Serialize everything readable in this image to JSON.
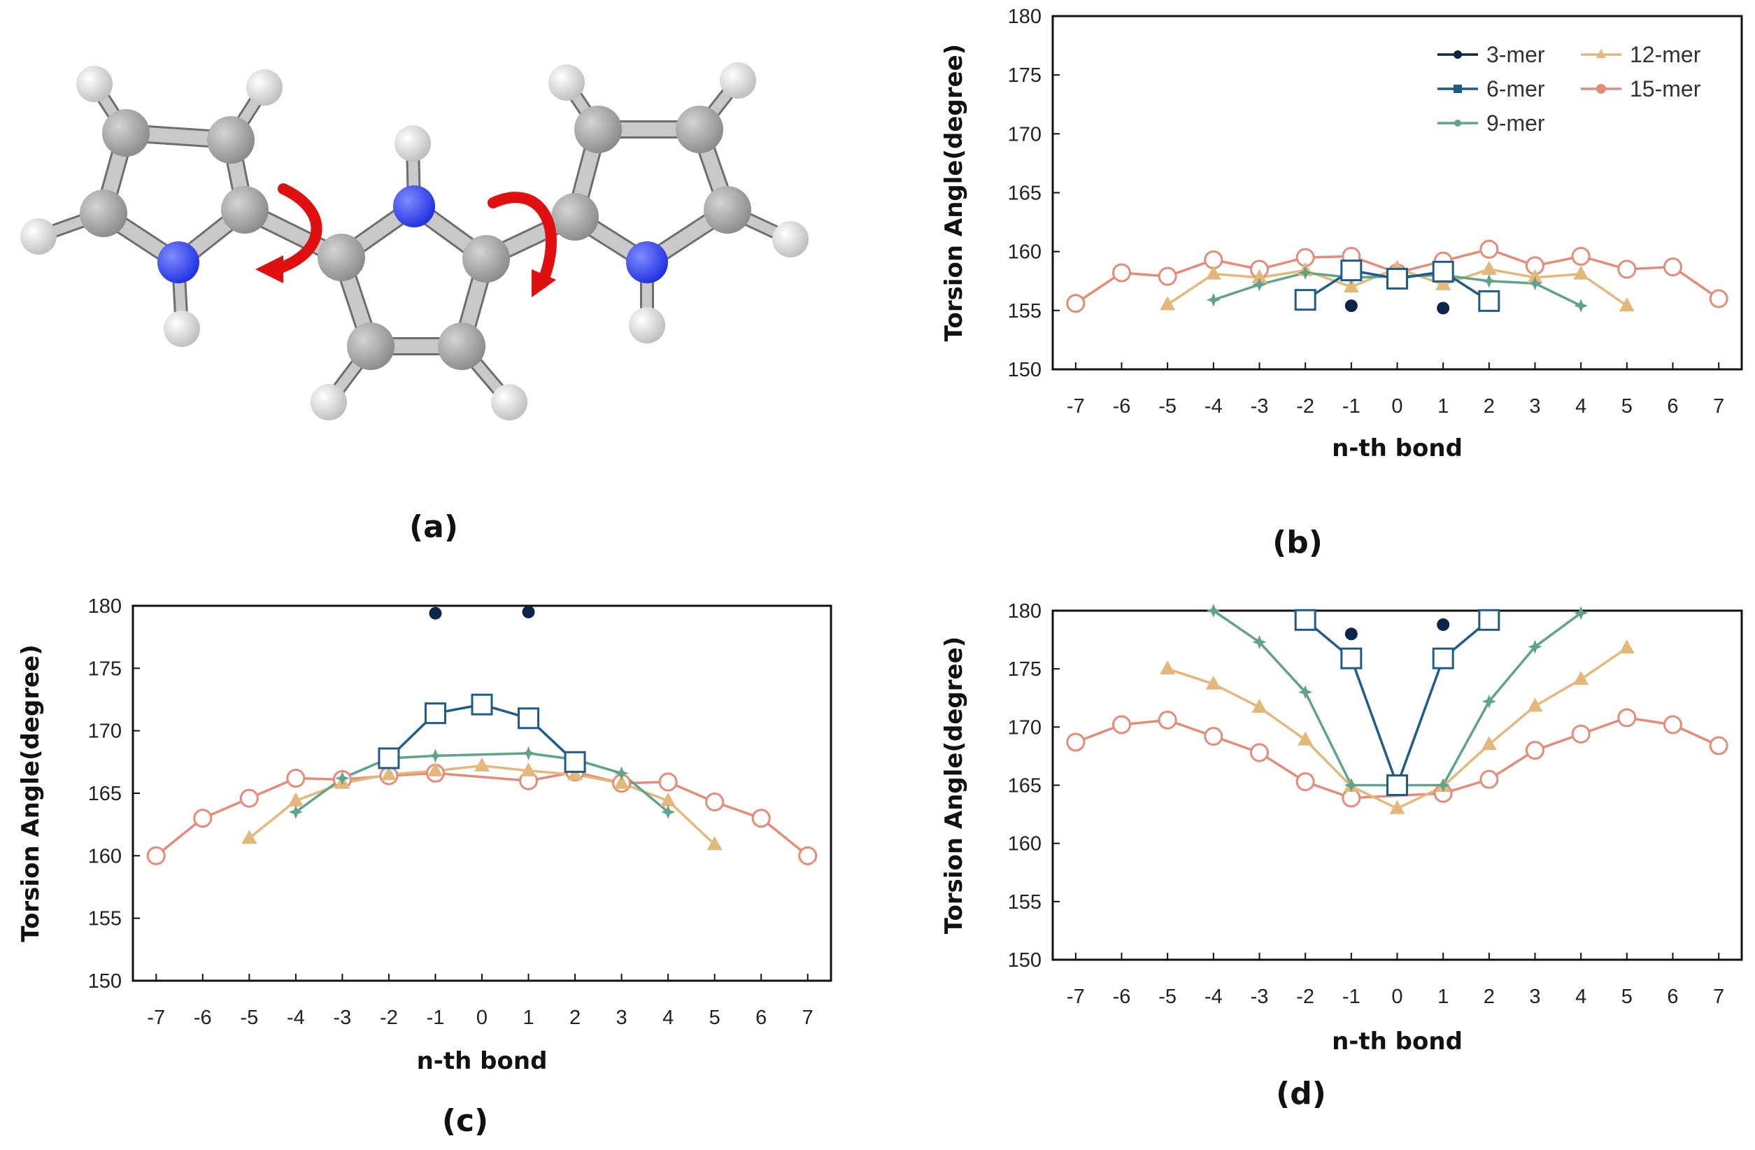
{
  "panels": {
    "a": "(a)",
    "b": "(b)",
    "c": "(c)",
    "d": "(d)"
  },
  "colors": {
    "3-mer": "#0b2447",
    "6-mer": "#1f5b87",
    "9-mer": "#5fa38a",
    "12-mer": "#e3b87a",
    "15-mer": "#e58b77",
    "carbon": "#8a8a8a",
    "nitrogen": "#1f2fe0",
    "hydrogen": "#eeeeee",
    "arrow": "#e01010"
  },
  "molecule": {
    "type": "terpyrrole ball-and-stick",
    "icon": "molecule-diagram"
  },
  "chart_data": [
    {
      "id": "b",
      "type": "line",
      "xlabel": "n-th bond",
      "ylabel": "Torsion Angle(degree)",
      "xticks": [
        -7,
        -6,
        -5,
        -4,
        -3,
        -2,
        -1,
        0,
        1,
        2,
        3,
        4,
        5,
        6,
        7
      ],
      "yticks": [
        150,
        155,
        160,
        165,
        170,
        175,
        180
      ],
      "ylim": [
        150,
        180
      ],
      "xlim": [
        -7.5,
        7.5
      ],
      "legend": {
        "placement": "top-right",
        "entries": [
          "3-mer",
          "6-mer",
          "9-mer",
          "12-mer",
          "15-mer"
        ]
      },
      "series": [
        {
          "name": "3-mer",
          "marker": "filled-circle",
          "line": false,
          "x": [
            -1,
            1
          ],
          "y": [
            155.4,
            155.2
          ]
        },
        {
          "name": "6-mer",
          "marker": "square",
          "line": true,
          "x": [
            -2,
            -1,
            0,
            1,
            2
          ],
          "y": [
            155.9,
            158.4,
            157.7,
            158.3,
            155.8
          ]
        },
        {
          "name": "9-mer",
          "marker": "star",
          "line": true,
          "x": [
            -4,
            -3,
            -2,
            -1,
            0,
            1,
            2,
            3,
            4
          ],
          "y": [
            155.9,
            157.2,
            158.2,
            157.8,
            157.9,
            158.0,
            157.5,
            157.3,
            155.4
          ]
        },
        {
          "name": "12-mer",
          "marker": "triangle",
          "line": true,
          "x": [
            -5,
            -4,
            -3,
            -2,
            -1,
            0,
            1,
            2,
            3,
            4,
            5
          ],
          "y": [
            155.5,
            158.1,
            157.8,
            158.4,
            157.0,
            158.6,
            157.2,
            158.5,
            157.8,
            158.1,
            155.4
          ]
        },
        {
          "name": "15-mer",
          "marker": "open-circle",
          "line": true,
          "x": [
            -7,
            -6,
            -5,
            -4,
            -3,
            -2,
            -1,
            0,
            1,
            2,
            3,
            4,
            5,
            6,
            7
          ],
          "y": [
            155.6,
            158.2,
            157.9,
            159.3,
            158.5,
            159.5,
            159.6,
            158.2,
            159.2,
            160.2,
            158.8,
            159.6,
            158.5,
            158.7,
            156.0
          ]
        }
      ]
    },
    {
      "id": "c",
      "type": "line",
      "xlabel": "n-th bond",
      "ylabel": "Torsion Angle(degree)",
      "xticks": [
        -7,
        -6,
        -5,
        -4,
        -3,
        -2,
        -1,
        0,
        1,
        2,
        3,
        4,
        5,
        6,
        7
      ],
      "yticks": [
        150,
        155,
        160,
        165,
        170,
        175,
        180
      ],
      "ylim": [
        150,
        180
      ],
      "xlim": [
        -7.5,
        7.5
      ],
      "series": [
        {
          "name": "3-mer",
          "marker": "filled-circle",
          "line": false,
          "x": [
            -1,
            1
          ],
          "y": [
            179.4,
            179.5
          ]
        },
        {
          "name": "6-mer",
          "marker": "square",
          "line": true,
          "x": [
            -2,
            -1,
            0,
            1,
            2
          ],
          "y": [
            167.8,
            171.4,
            172.1,
            171.0,
            167.5
          ]
        },
        {
          "name": "9-mer",
          "marker": "star",
          "line": true,
          "x": [
            -4,
            -3,
            -2,
            -1,
            1,
            2,
            3,
            4
          ],
          "y": [
            163.5,
            166.2,
            167.8,
            168.0,
            168.2,
            167.7,
            166.6,
            163.5
          ]
        },
        {
          "name": "12-mer",
          "marker": "triangle",
          "line": true,
          "x": [
            -5,
            -4,
            -3,
            -2,
            -1,
            0,
            1,
            2,
            3,
            4,
            5
          ],
          "y": [
            161.4,
            164.4,
            165.8,
            166.5,
            166.8,
            167.2,
            166.8,
            166.5,
            165.8,
            164.4,
            160.9
          ]
        },
        {
          "name": "15-mer",
          "marker": "open-circle",
          "line": true,
          "x": [
            -7,
            -6,
            -5,
            -4,
            -3,
            -2,
            -1,
            1,
            2,
            3,
            4,
            5,
            6,
            7
          ],
          "y": [
            160.0,
            163.0,
            164.6,
            166.2,
            166.1,
            166.4,
            166.6,
            166.0,
            166.7,
            165.8,
            165.9,
            164.3,
            163.0,
            160.0
          ]
        }
      ]
    },
    {
      "id": "d",
      "type": "line",
      "xlabel": "n-th bond",
      "ylabel": "Torsion Angle(degree)",
      "xticks": [
        -7,
        -6,
        -5,
        -4,
        -3,
        -2,
        -1,
        0,
        1,
        2,
        3,
        4,
        5,
        6,
        7
      ],
      "yticks": [
        150,
        155,
        160,
        165,
        170,
        175,
        180
      ],
      "ylim": [
        150,
        180
      ],
      "xlim": [
        -7.5,
        7.5
      ],
      "series": [
        {
          "name": "3-mer",
          "marker": "filled-circle",
          "line": false,
          "x": [
            -1,
            1
          ],
          "y": [
            178.0,
            178.8
          ]
        },
        {
          "name": "6-mer",
          "marker": "square",
          "line": true,
          "x": [
            -2,
            -1,
            0,
            1,
            2
          ],
          "y": [
            179.2,
            175.9,
            165.0,
            175.9,
            179.2
          ]
        },
        {
          "name": "9-mer",
          "marker": "star",
          "line": true,
          "x": [
            -4,
            -3,
            -2,
            -1,
            1,
            2,
            3,
            4
          ],
          "y": [
            180.0,
            177.3,
            173.0,
            165.0,
            165.0,
            172.2,
            176.9,
            179.8
          ]
        },
        {
          "name": "12-mer",
          "marker": "triangle",
          "line": true,
          "x": [
            -5,
            -4,
            -3,
            -2,
            -1,
            0,
            1,
            2,
            3,
            4,
            5
          ],
          "y": [
            175.0,
            173.7,
            171.7,
            168.9,
            164.9,
            163.0,
            164.9,
            168.5,
            171.8,
            174.1,
            176.8
          ]
        },
        {
          "name": "15-mer",
          "marker": "open-circle",
          "line": true,
          "x": [
            -7,
            -6,
            -5,
            -4,
            -3,
            -2,
            -1,
            1,
            2,
            3,
            4,
            5,
            6,
            7
          ],
          "y": [
            168.7,
            170.2,
            170.6,
            169.2,
            167.8,
            165.3,
            163.9,
            164.3,
            165.5,
            168.0,
            169.4,
            170.8,
            170.2,
            168.4
          ]
        }
      ]
    }
  ]
}
